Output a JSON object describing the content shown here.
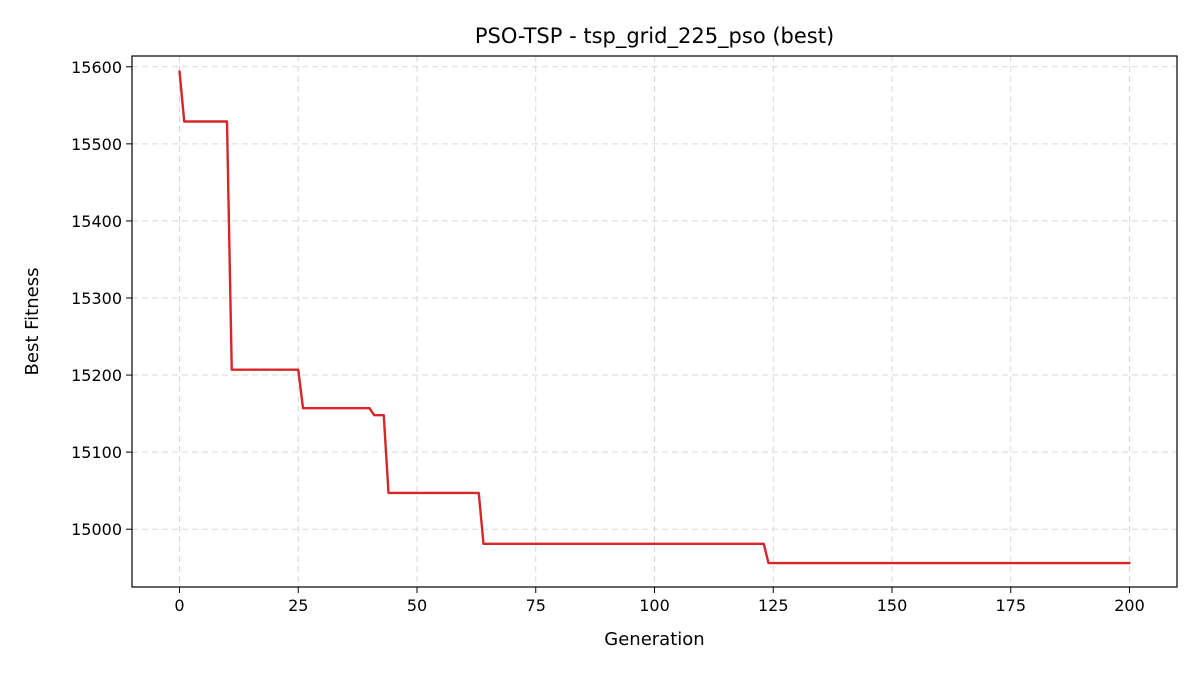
{
  "chart_data": {
    "type": "line",
    "title": "PSO-TSP - tsp_grid_225_pso (best)",
    "xlabel": "Generation",
    "ylabel": "Best Fitness",
    "xlim": [
      -10,
      210
    ],
    "ylim": [
      14925,
      15614
    ],
    "xticks": [
      0,
      25,
      50,
      75,
      100,
      125,
      150,
      175,
      200
    ],
    "yticks": [
      15000,
      15100,
      15200,
      15300,
      15400,
      15500,
      15600
    ],
    "grid": true,
    "series": [
      {
        "color": "#d62728",
        "points": [
          [
            0,
            15594
          ],
          [
            1,
            15529
          ],
          [
            10,
            15529
          ],
          [
            11,
            15207
          ],
          [
            25,
            15207
          ],
          [
            26,
            15157
          ],
          [
            40,
            15157
          ],
          [
            41,
            15148
          ],
          [
            43,
            15148
          ],
          [
            44,
            15047
          ],
          [
            63,
            15047
          ],
          [
            64,
            14981
          ],
          [
            123,
            14981
          ],
          [
            124,
            14956
          ],
          [
            200,
            14956
          ]
        ]
      }
    ]
  }
}
